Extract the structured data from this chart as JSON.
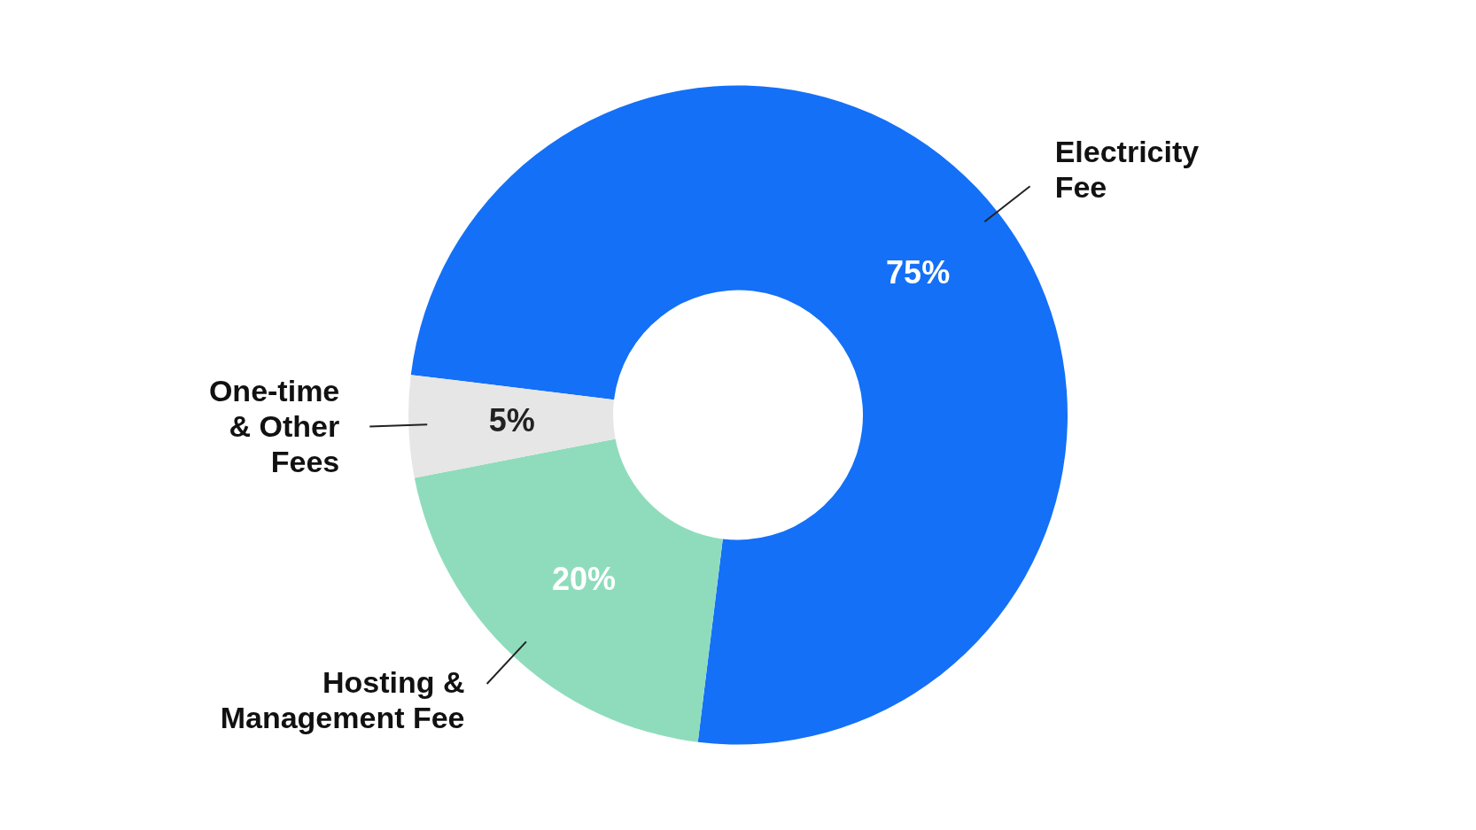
{
  "chart_data": {
    "type": "donut",
    "categories": [
      "Electricity Fee",
      "Hosting & Management Fee",
      "One-time & Other Fees"
    ],
    "values": [
      75,
      20,
      5
    ],
    "colors": [
      "#1470f7",
      "#8fdcbd",
      "#e6e6e6"
    ],
    "value_labels": [
      "75%",
      "20%",
      "5%"
    ]
  }
}
